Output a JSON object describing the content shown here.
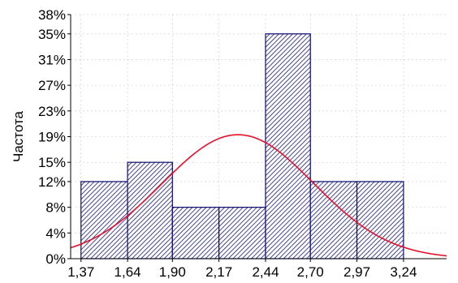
{
  "chart_data": {
    "type": "bar",
    "ylabel": "Частота",
    "xlabel": "",
    "x_ticks": [
      "1,37",
      "1,64",
      "1,90",
      "2,17",
      "2,44",
      "2,70",
      "2,97",
      "3,24"
    ],
    "y_ticks": [
      "0%",
      "4%",
      "8%",
      "12%",
      "15%",
      "19%",
      "23%",
      "27%",
      "31%",
      "35%",
      "38%"
    ],
    "xlim": [
      1.31,
      3.49
    ],
    "ylim": [
      0,
      38
    ],
    "bins": [
      {
        "from": 1.37,
        "to": 1.64,
        "value": 12
      },
      {
        "from": 1.64,
        "to": 1.9,
        "value": 15
      },
      {
        "from": 1.9,
        "to": 2.17,
        "value": 8
      },
      {
        "from": 2.17,
        "to": 2.44,
        "value": 8
      },
      {
        "from": 2.44,
        "to": 2.7,
        "value": 35
      },
      {
        "from": 2.7,
        "to": 2.97,
        "value": 12
      },
      {
        "from": 2.97,
        "to": 3.24,
        "value": 12
      }
    ],
    "normal_curve": {
      "mean": 2.28,
      "sd": 0.44,
      "peak": 19.3
    },
    "colors": {
      "bar_stroke": "#0a0a6e",
      "hatch": "#1a1a7a",
      "curve": "#e8102a",
      "grid": "#c8c8c8"
    },
    "grid": true
  }
}
